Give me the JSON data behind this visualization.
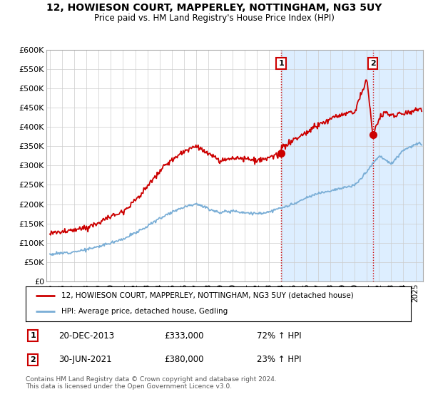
{
  "title": "12, HOWIESON COURT, MAPPERLEY, NOTTINGHAM, NG3 5UY",
  "subtitle": "Price paid vs. HM Land Registry's House Price Index (HPI)",
  "ylim": [
    0,
    600000
  ],
  "yticks": [
    0,
    50000,
    100000,
    150000,
    200000,
    250000,
    300000,
    350000,
    400000,
    450000,
    500000,
    550000,
    600000
  ],
  "ytick_labels": [
    "£0",
    "£50K",
    "£100K",
    "£150K",
    "£200K",
    "£250K",
    "£300K",
    "£350K",
    "£400K",
    "£450K",
    "£500K",
    "£550K",
    "£600K"
  ],
  "sale1_year": 2013.97,
  "sale1_price": 333000,
  "sale2_year": 2021.5,
  "sale2_price": 380000,
  "legend_line1": "12, HOWIESON COURT, MAPPERLEY, NOTTINGHAM, NG3 5UY (detached house)",
  "legend_line2": "HPI: Average price, detached house, Gedling",
  "annotation1_date": "20-DEC-2013",
  "annotation1_price": "£333,000",
  "annotation1_hpi": "72% ↑ HPI",
  "annotation2_date": "30-JUN-2021",
  "annotation2_price": "£380,000",
  "annotation2_hpi": "23% ↑ HPI",
  "footer": "Contains HM Land Registry data © Crown copyright and database right 2024.\nThis data is licensed under the Open Government Licence v3.0.",
  "red_color": "#cc0000",
  "blue_color": "#7aaed6",
  "shade_color": "#ddeeff",
  "xmin": 1994.7,
  "xmax": 2025.6
}
